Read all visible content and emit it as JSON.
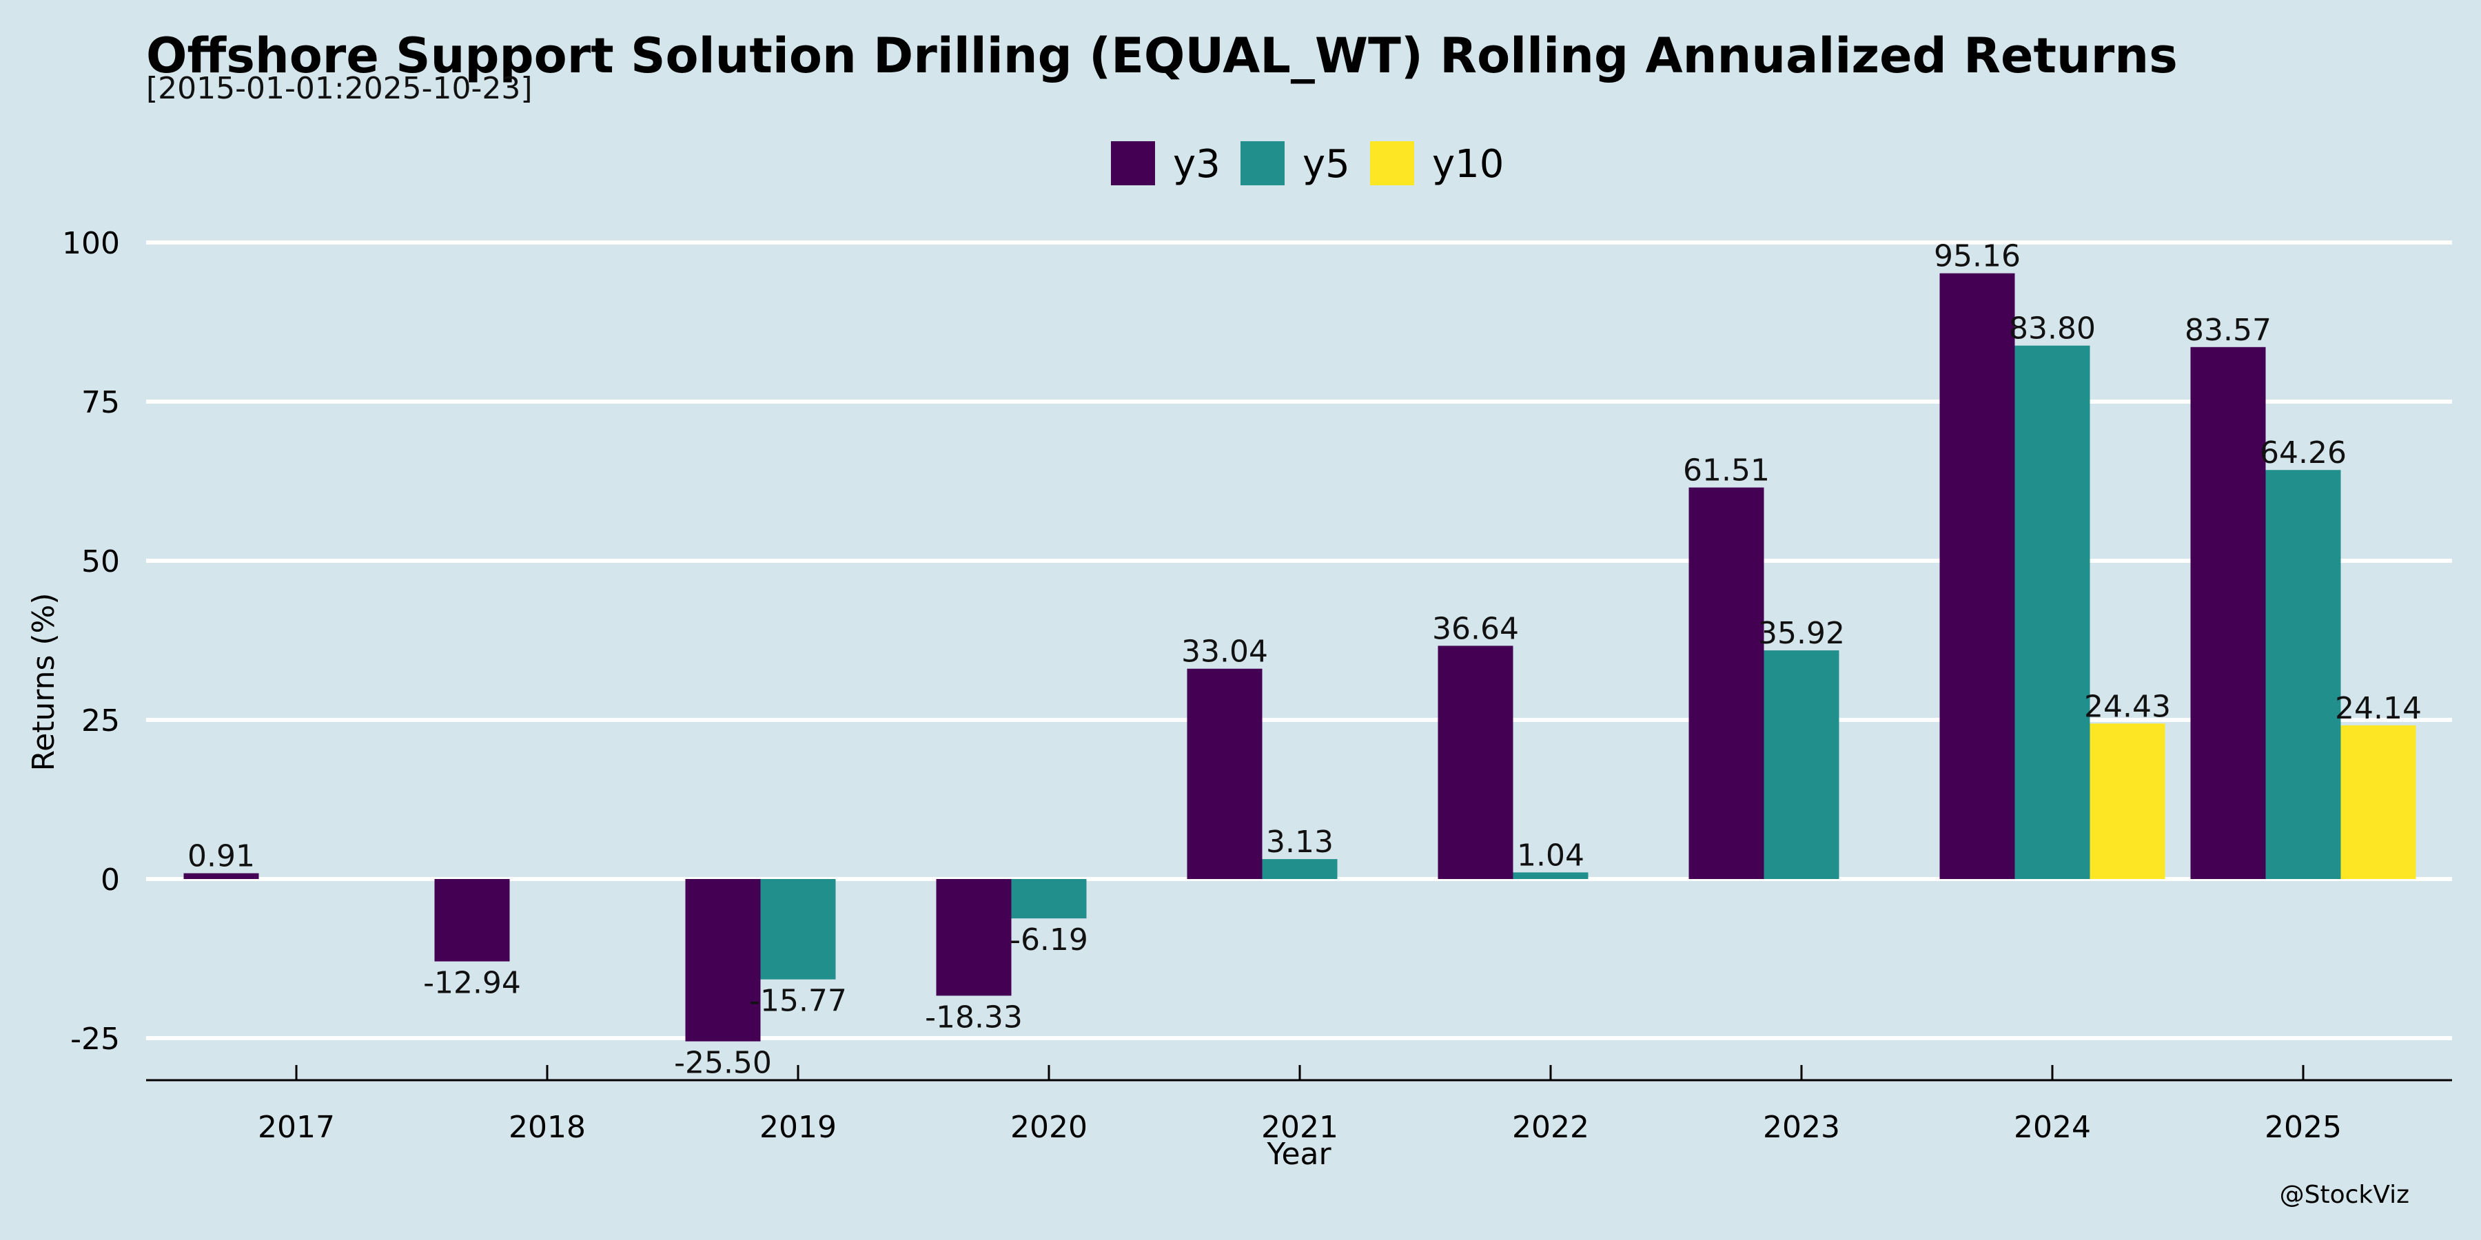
{
  "chart_data": {
    "type": "bar",
    "title": "Offshore Support Solution Drilling (EQUAL_WT) Rolling Annualized Returns",
    "subtitle": "[2015-01-01:2025-10-23]",
    "xlabel": "Year",
    "ylabel": "Returns (%)",
    "ylim": [
      -31.5,
      100
    ],
    "yticks": [
      100,
      75,
      50,
      25,
      0,
      -25
    ],
    "grid": true,
    "legend_position": "top-center",
    "categories": [
      "2017",
      "2018",
      "2019",
      "2020",
      "2021",
      "2022",
      "2023",
      "2024",
      "2025"
    ],
    "series": [
      {
        "name": "y3",
        "color": "#440154",
        "values": [
          0.91,
          -12.94,
          -25.5,
          -18.33,
          33.04,
          36.64,
          61.51,
          95.16,
          83.57
        ],
        "labels": [
          "0.91",
          "-12.94",
          "-25.50",
          "-18.33",
          "33.04",
          "36.64",
          "61.51",
          "95.16",
          "83.57"
        ]
      },
      {
        "name": "y5",
        "color": "#21908d",
        "values": [
          null,
          null,
          -15.77,
          -6.19,
          3.13,
          1.04,
          35.92,
          83.8,
          64.26
        ],
        "labels": [
          null,
          null,
          "-15.77",
          "-6.19",
          "3.13",
          "1.04",
          "35.92",
          "83.80",
          "64.26"
        ]
      },
      {
        "name": "y10",
        "color": "#fde725",
        "values": [
          null,
          null,
          null,
          null,
          null,
          null,
          null,
          24.43,
          24.14
        ],
        "labels": [
          null,
          null,
          null,
          null,
          null,
          null,
          null,
          "24.43",
          "24.14"
        ]
      }
    ],
    "credit": "@StockViz"
  }
}
